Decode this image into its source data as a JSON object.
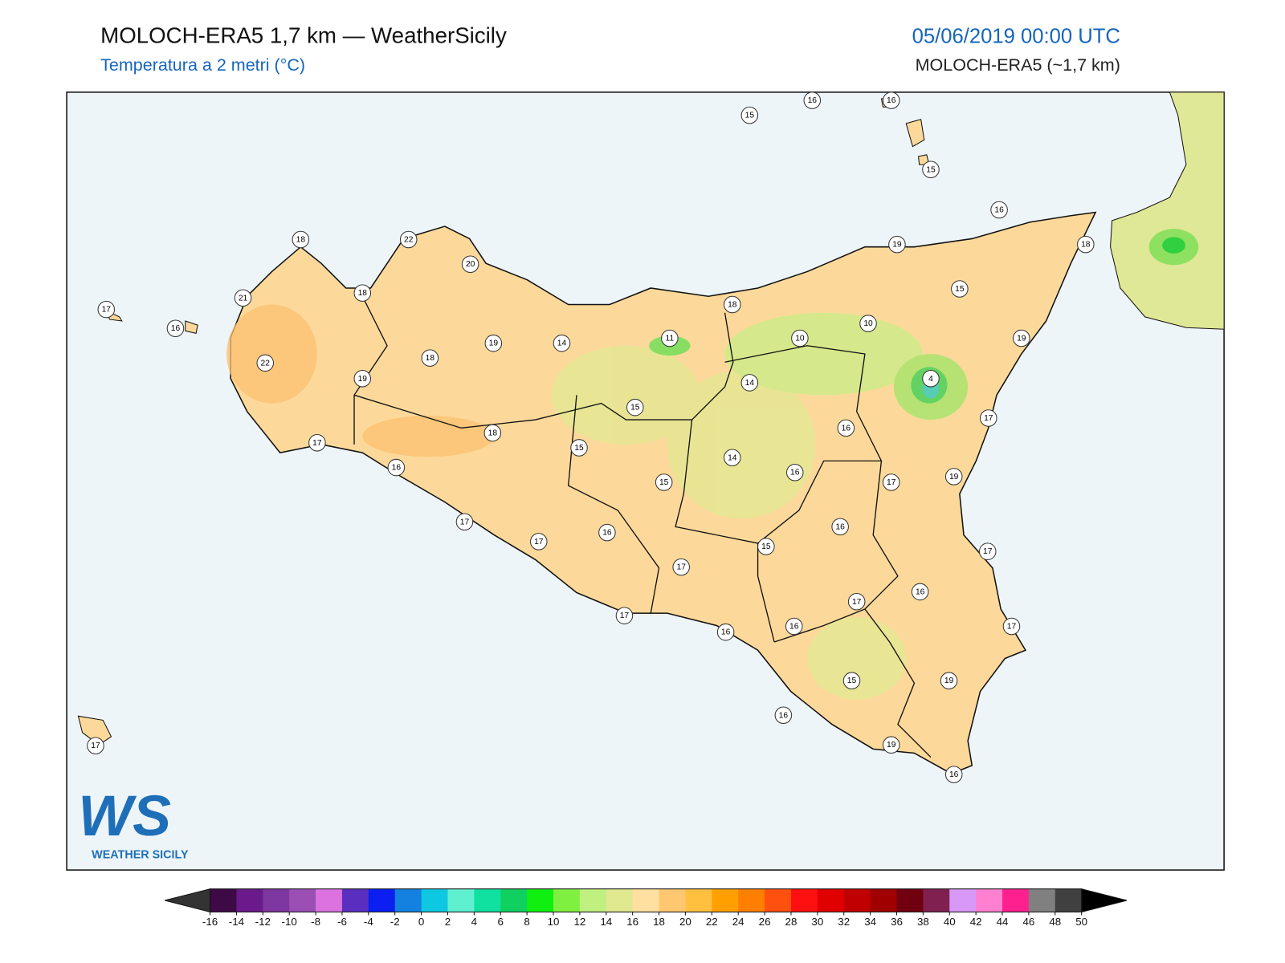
{
  "header": {
    "title": "MOLOCH-ERA5 1,7 km — WeatherSicily",
    "subtitle": "Temperatura a 2 metri (°C)",
    "datetime": "05/06/2019 00:00 UTC",
    "model": "MOLOCH-ERA5 (~1,7 km)"
  },
  "map": {
    "stations": [
      15,
      16,
      16,
      15,
      16,
      18,
      19,
      15,
      19,
      10,
      10,
      18,
      4,
      14,
      17,
      16,
      19,
      17,
      16,
      14,
      11,
      14,
      19,
      18,
      18,
      18,
      22,
      20,
      21,
      22,
      19,
      17,
      16,
      18,
      15,
      15,
      15,
      16,
      15,
      17,
      17,
      17,
      16,
      17,
      16,
      17,
      17,
      16,
      16,
      17,
      19,
      15,
      16,
      19,
      16,
      17,
      16,
      17
    ]
  },
  "logo": {
    "mark": "WS",
    "text": "WEATHER SICILY"
  },
  "colorbar": {
    "ticks": [
      -16,
      -14,
      -12,
      -10,
      -8,
      -6,
      -4,
      -2,
      0,
      2,
      4,
      6,
      8,
      10,
      12,
      14,
      16,
      18,
      20,
      22,
      24,
      26,
      28,
      30,
      32,
      34,
      36,
      38,
      40,
      42,
      44,
      46,
      48,
      50
    ],
    "colors": [
      "#3d0a45",
      "#6a1a8a",
      "#7e36a0",
      "#9b4fb5",
      "#db72e0",
      "#5a2fc0",
      "#0a1ff0",
      "#1480e0",
      "#0dc8e0",
      "#5ff0d0",
      "#10e0a0",
      "#10d060",
      "#10f010",
      "#80f040",
      "#c0f080",
      "#e0e890",
      "#ffe0a0",
      "#ffc870",
      "#ffc040",
      "#ffa000",
      "#ff8000",
      "#ff5010",
      "#ff1010",
      "#e00000",
      "#c00000",
      "#a00000",
      "#700010",
      "#802050",
      "#d898f8",
      "#ff80d0",
      "#ff2090",
      "#808080",
      "#404040"
    ],
    "under_color": "#333333",
    "over_color": "#000000"
  }
}
